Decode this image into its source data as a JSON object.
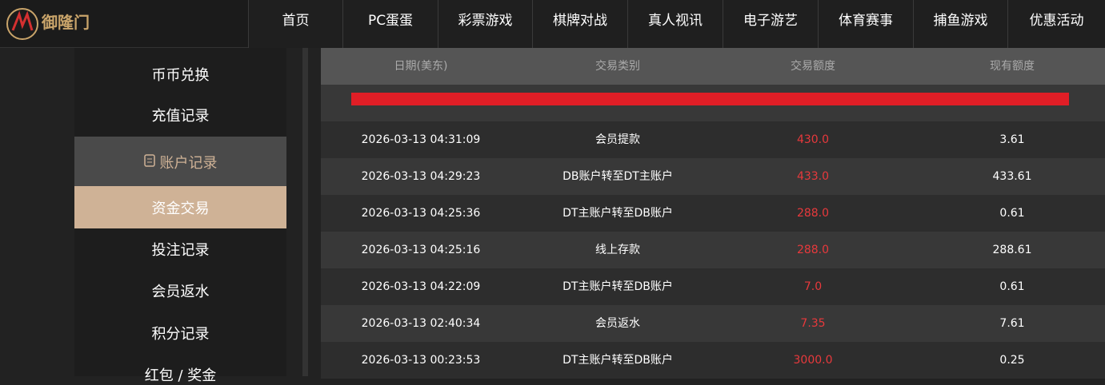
{
  "header": {
    "logo": "御隆门",
    "nav": [
      "首页",
      "PC蛋蛋",
      "彩票游戏",
      "棋牌对战",
      "真人视讯",
      "电子游艺",
      "体育赛事",
      "捕鱼游戏",
      "优惠活动"
    ]
  },
  "sidebar": {
    "items_top": [
      "币币兑换",
      "充值记录"
    ],
    "section": "账户记录",
    "active": "资金交易",
    "items_bottom": [
      "投注记录",
      "会员返水",
      "积分记录",
      "红包 / 奖金"
    ]
  },
  "table": {
    "columns": [
      "日期(美东)",
      "交易类别",
      "交易额度",
      "现有额度"
    ],
    "rows": [
      [
        "2026-03-13 04:31:09",
        "会员提款",
        "430.0",
        "3.61"
      ],
      [
        "2026-03-13 04:29:23",
        "DB账户转至DT主账户",
        "433.0",
        "433.61"
      ],
      [
        "2026-03-13 04:25:36",
        "DT主账户转至DB账户",
        "288.0",
        "0.61"
      ],
      [
        "2026-03-13 04:25:16",
        "线上存款",
        "288.0",
        "288.61"
      ],
      [
        "2026-03-13 04:22:09",
        "DT主账户转至DB账户",
        "7.0",
        "0.61"
      ],
      [
        "2026-03-13 02:40:34",
        "会员返水",
        "7.35",
        "7.61"
      ],
      [
        "2026-03-13 00:23:53",
        "DT主账户转至DB账户",
        "3000.0",
        "0.25"
      ]
    ]
  }
}
